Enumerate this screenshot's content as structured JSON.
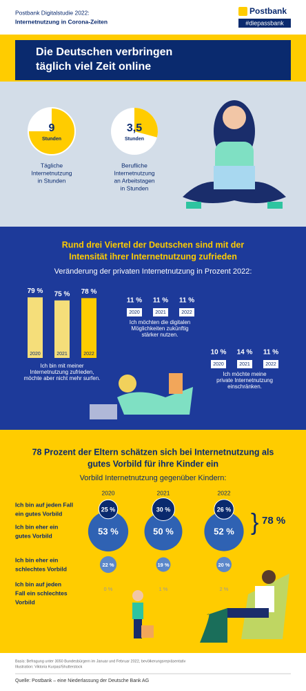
{
  "header": {
    "line1": "Postbank Digitalstudie 2022:",
    "line2": "Internetnutzung in Corona-Zeiten",
    "logo": "Postbank",
    "hashtag": "#diepassbank"
  },
  "title": {
    "line1": "Die Deutschen verbringen",
    "line2": "täglich viel Zeit online"
  },
  "clocks": [
    {
      "value": "9",
      "unit": "Stunden",
      "label": [
        "Tägliche",
        "Internetnutzung",
        "in Stunden"
      ]
    },
    {
      "value": "3,5",
      "unit": "Stunden",
      "label": [
        "Berufliche",
        "Internetnutzung",
        "an Arbeitstagen",
        "in Stunden"
      ]
    }
  ],
  "section2": {
    "heading": [
      "Rund drei Viertel der Deutschen sind mit der",
      "Intensität ihrer Internetnutzung zufrieden"
    ],
    "subtitle": "Veränderung der privaten Internetnutzung in Prozent 2022:",
    "groups": [
      {
        "years": [
          "2020",
          "2021",
          "2022"
        ],
        "values": [
          79,
          75,
          78
        ],
        "value_labels": [
          "79 %",
          "75 %",
          "78 %"
        ],
        "caption": [
          "Ich bin mit meiner",
          "Internetnutzung zufrieden,",
          "möchte aber nicht mehr surfen."
        ]
      },
      {
        "years": [
          "2020",
          "2021",
          "2022"
        ],
        "values": [
          11,
          11,
          11
        ],
        "value_labels": [
          "11 %",
          "11 %",
          "11 %"
        ],
        "caption": [
          "Ich möchten die digitalen",
          "Möglichkeiten zukünftig",
          "stärker nutzen."
        ]
      },
      {
        "years": [
          "2020",
          "2021",
          "2022"
        ],
        "values": [
          10,
          14,
          11
        ],
        "value_labels": [
          "10 %",
          "14 %",
          "11 %"
        ],
        "caption": [
          "Ich möchte meine",
          "private Internetnutzung",
          "einschränken."
        ]
      }
    ]
  },
  "section3": {
    "heading": [
      "78 Prozent der Eltern schätzen sich bei Internetnutzung als",
      "gutes Vorbild für ihre Kinder ein"
    ],
    "subtitle": "Vorbild Internetnutzung gegenüber Kindern:",
    "years": [
      "2020",
      "2021",
      "2022"
    ],
    "rows": [
      {
        "label": [
          "Ich bin auf jeden Fall",
          "ein gutes Vorbild"
        ],
        "values": [
          25,
          30,
          26
        ],
        "value_labels": [
          "25 %",
          "30 %",
          "26 %"
        ]
      },
      {
        "label": [
          "Ich bin eher ein",
          "gutes Vorbild"
        ],
        "values": [
          53,
          50,
          52
        ],
        "value_labels": [
          "53 %",
          "50 %",
          "52 %"
        ]
      },
      {
        "label": [
          "Ich bin eher ein",
          "schlechtes Vorbild"
        ],
        "values": [
          22,
          19,
          20
        ],
        "value_labels": [
          "22 %",
          "19 %",
          "20 %"
        ]
      },
      {
        "label": [
          "Ich bin auf jeden",
          "Fall ein schlechtes",
          "Vorbild"
        ],
        "values": [
          0,
          1,
          2
        ],
        "value_labels": [
          "0 %",
          "1 %",
          "2 %"
        ]
      }
    ],
    "total": "78 %"
  },
  "footer": {
    "basis": [
      "Basis: Befragung unter 3050 Bundesbürgern im Januar und Februar 2022, bevölkerungsrepräsentativ",
      "Illustration: Viktoria Kurpas/Shutterstock"
    ],
    "source": "Quelle: Postbank – eine Niederlassung der Deutsche Bank AG"
  }
}
